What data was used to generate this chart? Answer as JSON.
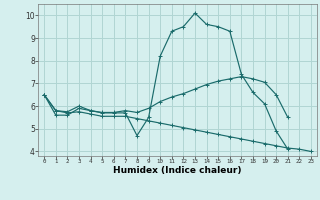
{
  "xlabel": "Humidex (Indice chaleur)",
  "bg_color": "#d5efee",
  "grid_color": "#b0d5d3",
  "line_color": "#1a6b6b",
  "xlim": [
    -0.5,
    23.5
  ],
  "ylim": [
    3.8,
    10.5
  ],
  "line1_x": [
    0,
    1,
    2,
    3,
    4,
    5,
    6,
    7,
    8,
    9,
    10,
    11,
    12,
    13,
    14,
    15,
    16,
    17,
    18,
    19,
    20,
    21
  ],
  "line1_y": [
    6.5,
    5.6,
    5.6,
    5.9,
    5.8,
    5.7,
    5.7,
    5.7,
    4.7,
    5.5,
    8.2,
    9.3,
    9.5,
    10.1,
    9.6,
    9.5,
    9.3,
    7.4,
    6.6,
    6.1,
    4.9,
    4.1
  ],
  "line2_x": [
    0,
    1,
    2,
    3,
    4,
    5,
    6,
    7,
    8,
    9,
    10,
    11,
    12,
    13,
    14,
    15,
    16,
    17,
    18,
    19,
    20,
    21
  ],
  "line2_y": [
    6.5,
    5.8,
    5.75,
    6.0,
    5.8,
    5.72,
    5.72,
    5.8,
    5.72,
    5.9,
    6.2,
    6.4,
    6.55,
    6.75,
    6.95,
    7.1,
    7.2,
    7.3,
    7.2,
    7.05,
    6.5,
    5.5
  ],
  "line3_x": [
    0,
    1,
    2,
    3,
    4,
    5,
    6,
    7,
    8,
    9,
    10,
    11,
    12,
    13,
    14,
    15,
    16,
    17,
    18,
    19,
    20,
    21,
    22,
    23
  ],
  "line3_y": [
    6.5,
    5.8,
    5.7,
    5.75,
    5.65,
    5.55,
    5.55,
    5.55,
    5.45,
    5.35,
    5.25,
    5.15,
    5.05,
    4.95,
    4.85,
    4.75,
    4.65,
    4.55,
    4.45,
    4.35,
    4.25,
    4.15,
    4.1,
    4.0
  ]
}
